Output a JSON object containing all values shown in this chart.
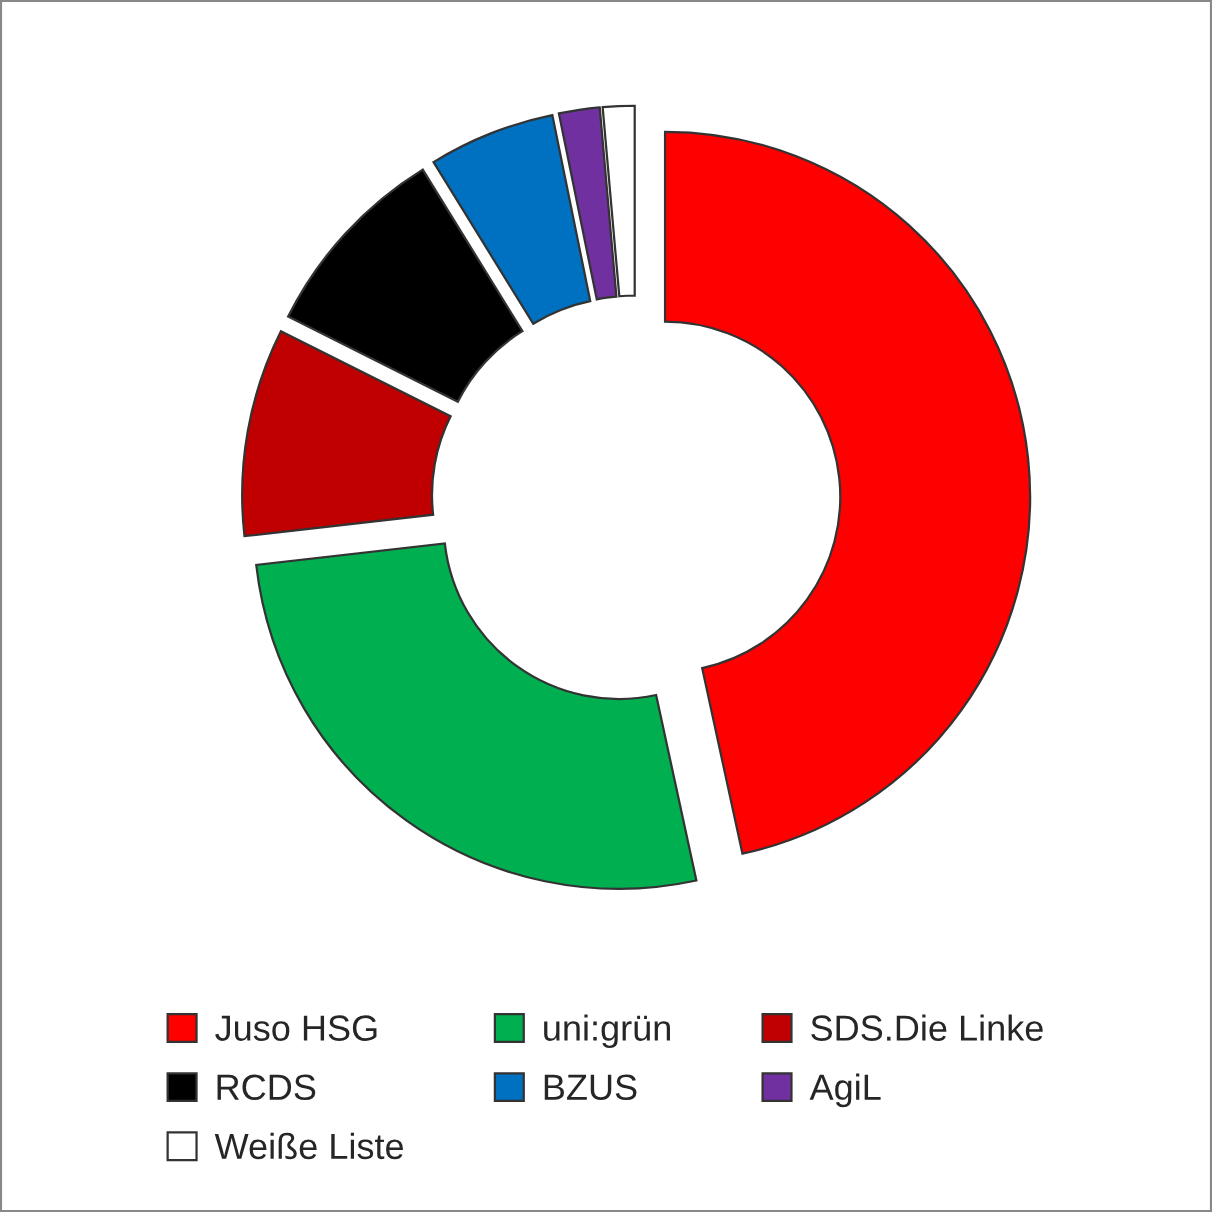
{
  "chart_data": {
    "type": "donut",
    "categories": [
      "Juso HSG",
      "uni:grün",
      "SDS.Die Linke",
      "RCDS",
      "BZUS",
      "AgiL",
      "Weiße Liste"
    ],
    "values": [
      46.6,
      26.6,
      9.2,
      8.8,
      5.6,
      1.8,
      1.4
    ],
    "colors": [
      "#ff0000",
      "#00b050",
      "#c00000",
      "#000000",
      "#0070c0",
      "#7030a0",
      "#ffffff"
    ],
    "legend": "bottom"
  }
}
